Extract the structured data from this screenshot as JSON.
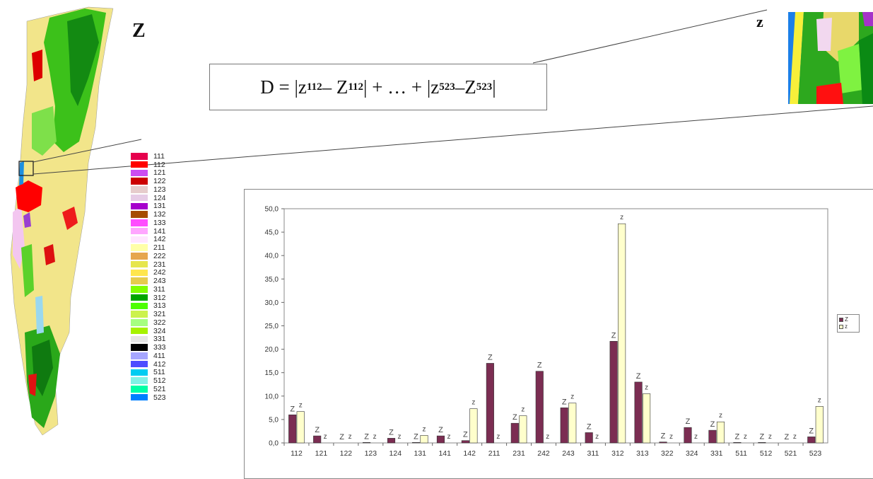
{
  "labels": {
    "big_Z": "Z",
    "small_z": "z"
  },
  "formula": {
    "D": "D = |z",
    "sub1": "112",
    "mid1": " – Z",
    "sub2": "112",
    "mid2": "| + … + |z",
    "sub3": "523",
    "mid3": " –Z",
    "sub4": "523",
    "end": "|"
  },
  "land_cover_legend": [
    {
      "code": "111",
      "color": "#e6004d"
    },
    {
      "code": "112",
      "color": "#ff0000"
    },
    {
      "code": "121",
      "color": "#cc4df2"
    },
    {
      "code": "122",
      "color": "#cc0000"
    },
    {
      "code": "123",
      "color": "#e6cccc"
    },
    {
      "code": "124",
      "color": "#e6cce6"
    },
    {
      "code": "131",
      "color": "#a600cc"
    },
    {
      "code": "132",
      "color": "#a64d00"
    },
    {
      "code": "133",
      "color": "#ff4dff"
    },
    {
      "code": "141",
      "color": "#ffa6ff"
    },
    {
      "code": "142",
      "color": "#ffe6ff"
    },
    {
      "code": "211",
      "color": "#ffffa8"
    },
    {
      "code": "222",
      "color": "#e6a64d"
    },
    {
      "code": "231",
      "color": "#e6e64d"
    },
    {
      "code": "242",
      "color": "#ffe64d"
    },
    {
      "code": "243",
      "color": "#e6cc4d"
    },
    {
      "code": "311",
      "color": "#80ff00"
    },
    {
      "code": "312",
      "color": "#00a600"
    },
    {
      "code": "313",
      "color": "#4dff00"
    },
    {
      "code": "321",
      "color": "#ccf24d"
    },
    {
      "code": "322",
      "color": "#a6ff80"
    },
    {
      "code": "324",
      "color": "#a6f200"
    },
    {
      "code": "331",
      "color": "#e6e6e6"
    },
    {
      "code": "333",
      "color": "#000000"
    },
    {
      "code": "411",
      "color": "#a6a6ff"
    },
    {
      "code": "412",
      "color": "#4d4dff"
    },
    {
      "code": "511",
      "color": "#00ccf2"
    },
    {
      "code": "512",
      "color": "#80f2e6"
    },
    {
      "code": "521",
      "color": "#00ffa6"
    },
    {
      "code": "523",
      "color": "#0080ff"
    }
  ],
  "colors": {
    "series_Z": "#7b2d52",
    "series_z": "#ffffcc",
    "map_outline": "#444444"
  },
  "chart_data": {
    "type": "bar",
    "categories": [
      "112",
      "121",
      "122",
      "123",
      "124",
      "131",
      "141",
      "142",
      "211",
      "231",
      "242",
      "243",
      "311",
      "312",
      "313",
      "322",
      "324",
      "331",
      "511",
      "512",
      "521",
      "523"
    ],
    "series": [
      {
        "name": "Z",
        "values": [
          6.0,
          1.5,
          0.0,
          0.1,
          1.0,
          0.1,
          1.5,
          0.5,
          17.0,
          4.2,
          15.3,
          7.5,
          2.2,
          21.7,
          13.0,
          0.2,
          3.3,
          2.7,
          0.1,
          0.1,
          0.0,
          1.3
        ]
      },
      {
        "name": "z",
        "values": [
          6.7,
          0.0,
          0.0,
          0.0,
          0.0,
          1.6,
          0.0,
          7.3,
          0.0,
          5.8,
          0.0,
          8.5,
          0.0,
          46.8,
          10.5,
          0.0,
          0.0,
          4.5,
          0.0,
          0.0,
          0.0,
          7.8
        ]
      }
    ],
    "bar_labels": {
      "Z": [
        "Z",
        "Z",
        "Z",
        "Z",
        "Z",
        "Z",
        "Z",
        "Z",
        "Z",
        "Z",
        "Z",
        "Z",
        "Z",
        "Z",
        "Z",
        "Z",
        "Z",
        "Z",
        "Z",
        "Z",
        "Z",
        "Z"
      ],
      "z": [
        "z",
        "z",
        "z",
        "z",
        "z",
        "z",
        "z",
        "z",
        "z",
        "z",
        "z",
        "z",
        "z",
        "z",
        "z",
        "z",
        "z",
        "z",
        "z",
        "z",
        "z",
        "z"
      ]
    },
    "y_ticks": [
      "0,0",
      "5,0",
      "10,0",
      "15,0",
      "20,0",
      "25,0",
      "30,0",
      "35,0",
      "40,0",
      "45,0",
      "50,0"
    ],
    "ylim": [
      0,
      50
    ],
    "grid": false,
    "legend_placement": "right",
    "legend": [
      "Z",
      "z"
    ],
    "title": "",
    "xlabel": "",
    "ylabel": ""
  }
}
